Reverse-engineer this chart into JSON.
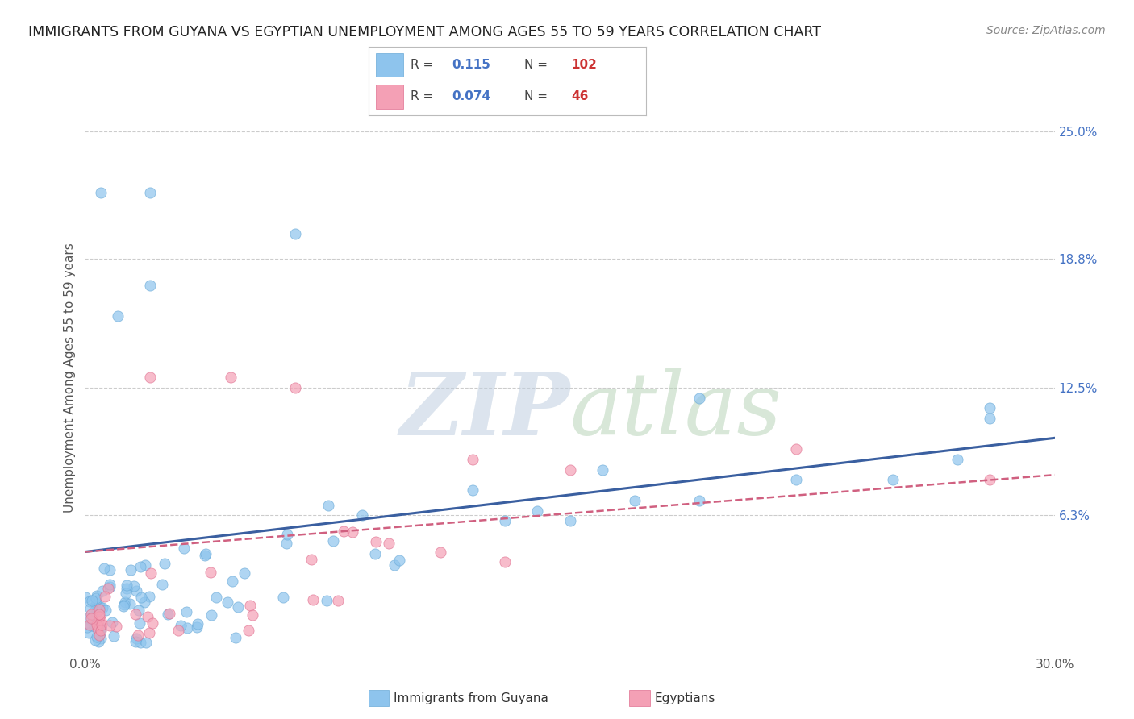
{
  "title": "IMMIGRANTS FROM GUYANA VS EGYPTIAN UNEMPLOYMENT AMONG AGES 55 TO 59 YEARS CORRELATION CHART",
  "source": "Source: ZipAtlas.com",
  "ylabel": "Unemployment Among Ages 55 to 59 years",
  "xlim": [
    0.0,
    0.3
  ],
  "ylim": [
    -0.005,
    0.265
  ],
  "ytick_labels_right": [
    "6.3%",
    "12.5%",
    "18.8%",
    "25.0%"
  ],
  "ytick_vals_right": [
    0.063,
    0.125,
    0.188,
    0.25
  ],
  "grid_color": "#cccccc",
  "background_color": "#ffffff",
  "blue_color": "#8ec4ed",
  "blue_edge_color": "#6aaad8",
  "blue_line_color": "#3a5fa0",
  "pink_color": "#f4a0b5",
  "pink_edge_color": "#e07090",
  "pink_line_color": "#d06080",
  "legend_R_color": "#4472c4",
  "legend_N_color": "#cc3333",
  "watermark_zip_color": "#c0cfe0",
  "watermark_atlas_color": "#c8d8c8",
  "title_fontsize": 12.5,
  "source_fontsize": 10,
  "axis_label_fontsize": 11,
  "tick_fontsize": 11,
  "blue_R": "0.115",
  "blue_N": "102",
  "pink_R": "0.074",
  "pink_N": "46",
  "series_names": [
    "Immigrants from Guyana",
    "Egyptians"
  ]
}
